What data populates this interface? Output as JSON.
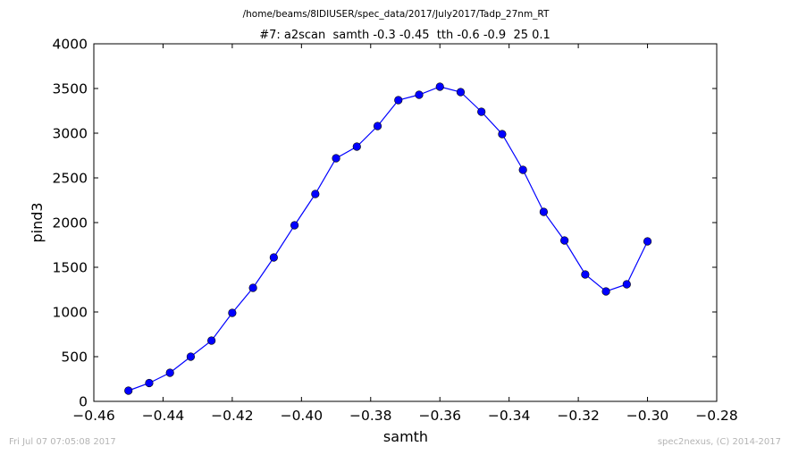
{
  "footer": {
    "timestamp": "Fri Jul 07 07:05:08 2017",
    "credit": "spec2nexus, (C) 2014-2017"
  },
  "chart_data": {
    "type": "line",
    "title": "/home/beams/8IDIUSER/spec_data/2017/July2017/Tadp_27nm_RT",
    "subtitle": "#7: a2scan  samth -0.3 -0.45  tth -0.6 -0.9  25 0.1",
    "xlabel": "samth",
    "ylabel": "pind3",
    "xlim": [
      -0.46,
      -0.28
    ],
    "ylim": [
      0,
      4000
    ],
    "xticks": [
      "−0.46",
      "−0.44",
      "−0.42",
      "−0.40",
      "−0.38",
      "−0.36",
      "−0.34",
      "−0.32",
      "−0.30",
      "−0.28"
    ],
    "xtick_values": [
      -0.46,
      -0.44,
      -0.42,
      -0.4,
      -0.38,
      -0.36,
      -0.34,
      -0.32,
      -0.3,
      -0.28
    ],
    "yticks": [
      "0",
      "500",
      "1000",
      "1500",
      "2000",
      "2500",
      "3000",
      "3500",
      "4000"
    ],
    "ytick_values": [
      0,
      500,
      1000,
      1500,
      2000,
      2500,
      3000,
      3500,
      4000
    ],
    "grid": false,
    "line_color": "#0000ff",
    "marker_color": "#0000ff",
    "series": [
      {
        "x": [
          -0.45,
          -0.444,
          -0.438,
          -0.432,
          -0.426,
          -0.42,
          -0.414,
          -0.408,
          -0.402,
          -0.396,
          -0.39,
          -0.384,
          -0.378,
          -0.372,
          -0.366,
          -0.36,
          -0.354,
          -0.348,
          -0.342,
          -0.336,
          -0.33,
          -0.324,
          -0.318,
          -0.312,
          -0.306,
          -0.3
        ],
        "y": [
          120,
          205,
          320,
          500,
          680,
          990,
          1270,
          1610,
          1970,
          2320,
          2720,
          2850,
          3080,
          3370,
          3430,
          3520,
          3460,
          3240,
          2990,
          2590,
          2120,
          1800,
          1420,
          1230,
          1310,
          1790
        ]
      }
    ]
  }
}
